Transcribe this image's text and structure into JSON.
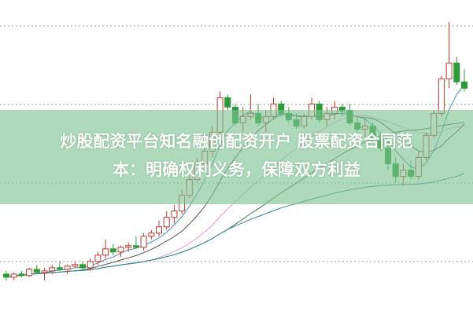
{
  "chart_data": {
    "type": "candlestick",
    "title": "",
    "xlabel": "",
    "ylabel": "",
    "ylim": [
      0,
      100
    ],
    "grid": true,
    "colors": {
      "up": "#c0392b",
      "down": "#2e9b3a",
      "band": "#7dc491"
    },
    "moving_averages": [
      {
        "period": 5,
        "color": "#4a8fa8"
      },
      {
        "period": 10,
        "color": "#555555"
      },
      {
        "period": 20,
        "color": "#e29ad8"
      },
      {
        "period": 30,
        "color": "#3c7a3c"
      },
      {
        "period": 60,
        "color": "#2a8a9a"
      }
    ],
    "ohlc": [
      [
        13,
        14,
        11,
        12
      ],
      [
        12,
        13.5,
        11,
        13
      ],
      [
        13,
        14,
        12,
        12.5
      ],
      [
        12.5,
        15,
        12,
        14.5
      ],
      [
        14.5,
        16,
        13,
        13.5
      ],
      [
        13.5,
        15,
        11,
        14
      ],
      [
        14,
        16,
        13,
        15
      ],
      [
        15,
        17,
        14,
        14.5
      ],
      [
        14.5,
        16,
        13,
        15.5
      ],
      [
        15.5,
        17,
        15,
        16
      ],
      [
        16,
        17,
        14,
        15
      ],
      [
        15,
        18,
        14,
        17
      ],
      [
        17,
        20,
        16,
        19
      ],
      [
        19,
        24,
        18,
        21
      ],
      [
        21,
        22.5,
        19,
        20
      ],
      [
        20,
        22,
        18.5,
        21.5
      ],
      [
        21.5,
        23,
        20,
        22
      ],
      [
        22,
        25,
        21,
        21.5
      ],
      [
        21.5,
        26,
        20.5,
        25
      ],
      [
        25,
        27,
        24,
        26
      ],
      [
        26,
        30,
        25,
        28
      ],
      [
        28,
        33,
        27,
        31
      ],
      [
        31,
        35,
        29,
        33
      ],
      [
        33,
        40,
        32,
        38
      ],
      [
        38,
        44,
        37,
        43
      ],
      [
        43,
        50,
        42,
        48
      ],
      [
        48,
        55,
        46,
        52
      ],
      [
        52,
        60,
        50,
        58
      ],
      [
        58,
        71,
        55,
        69
      ],
      [
        69,
        70,
        65,
        66
      ],
      [
        66,
        67,
        60,
        61
      ],
      [
        61,
        66,
        58,
        63
      ],
      [
        63,
        70,
        62,
        64
      ],
      [
        64,
        67,
        60,
        61
      ],
      [
        61,
        65,
        58,
        63
      ],
      [
        63,
        69,
        62,
        67
      ],
      [
        67,
        68,
        63,
        64
      ],
      [
        64,
        66,
        61,
        62
      ],
      [
        62,
        64,
        59,
        60
      ],
      [
        60,
        64,
        59,
        63
      ],
      [
        63,
        69,
        62,
        67
      ],
      [
        67,
        68,
        61,
        62
      ],
      [
        62,
        66,
        60,
        64
      ],
      [
        64,
        68,
        62,
        66
      ],
      [
        66,
        67,
        63,
        65
      ],
      [
        65,
        67,
        60,
        61
      ],
      [
        61,
        63,
        58,
        59
      ],
      [
        59,
        62,
        56,
        60
      ],
      [
        60,
        61,
        55,
        56
      ],
      [
        56,
        58,
        52,
        53
      ],
      [
        53,
        55,
        46,
        48
      ],
      [
        48,
        50,
        42,
        44
      ],
      [
        44,
        48,
        41,
        46
      ],
      [
        46,
        49,
        43,
        44
      ],
      [
        44,
        52,
        43,
        50
      ],
      [
        50,
        58,
        49,
        57
      ],
      [
        57,
        65,
        56,
        64
      ],
      [
        64,
        76,
        63,
        75
      ],
      [
        75,
        93,
        72,
        80
      ],
      [
        80,
        82,
        73,
        74
      ],
      [
        74,
        78,
        71,
        72
      ]
    ]
  },
  "overlay": {
    "title_line1": "炒股配资平台知名融创配资开户 股票配资合同范",
    "title_line2": "本：明确权利义务，保障双方利益"
  }
}
